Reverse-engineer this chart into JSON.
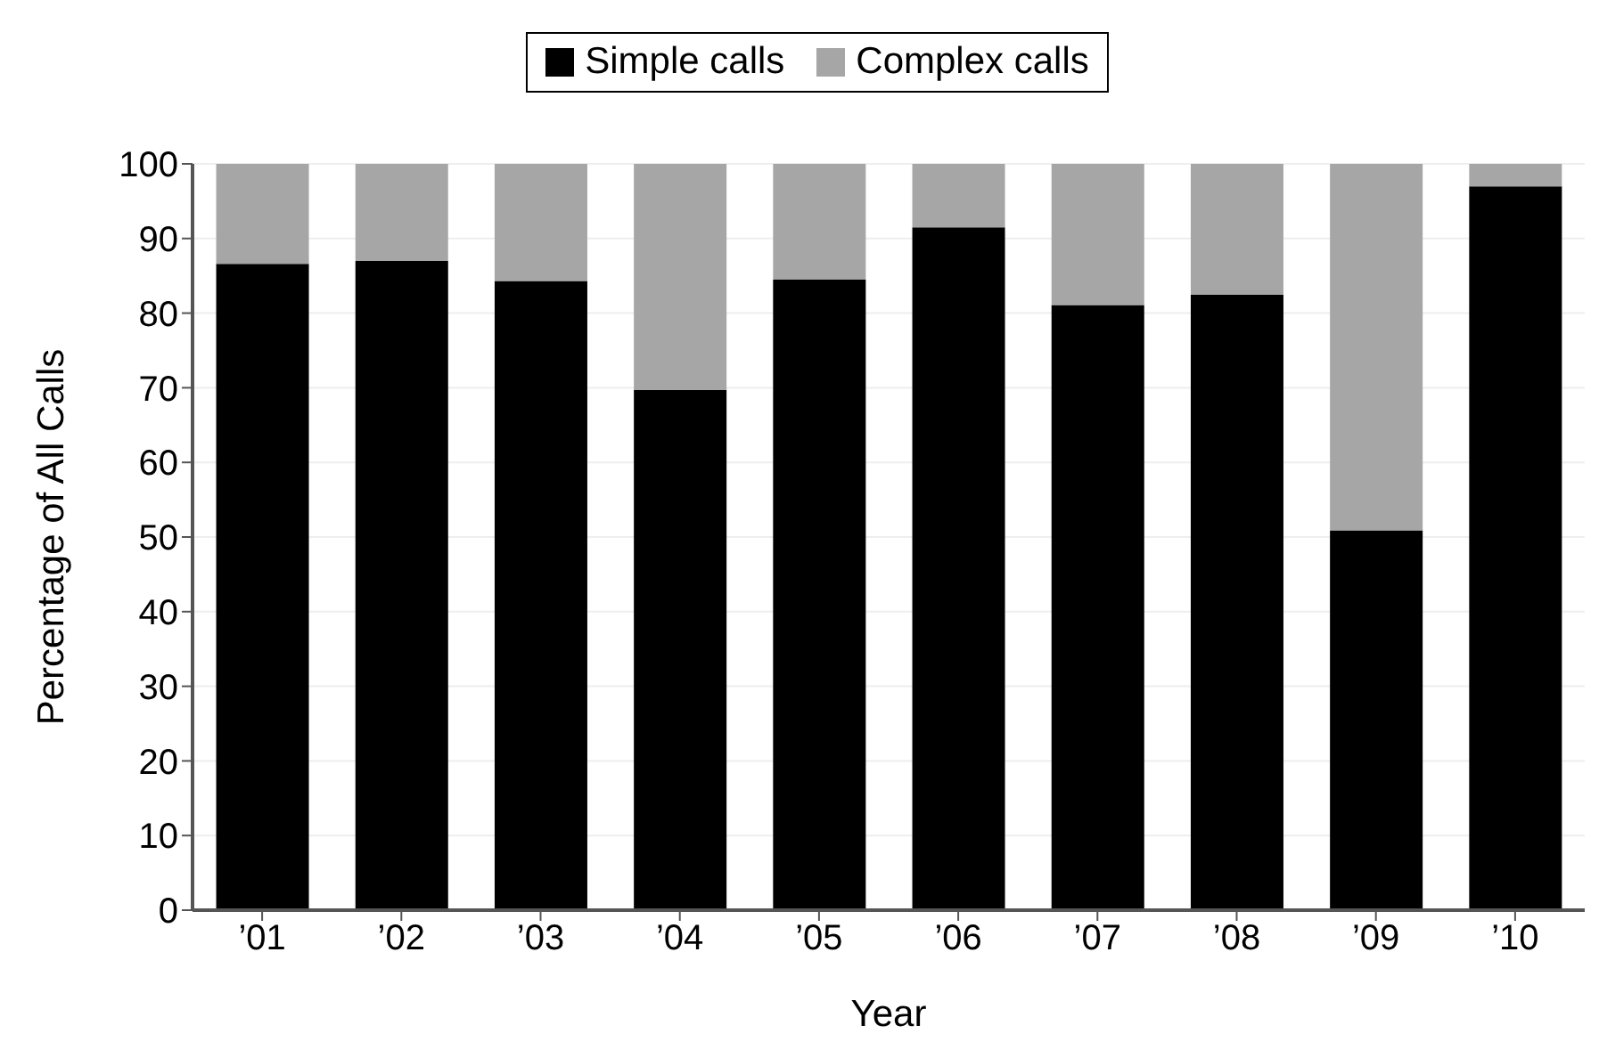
{
  "chart_data": {
    "type": "bar",
    "stacked": true,
    "xlabel": "Year",
    "ylabel": "Percentage of All Calls",
    "categories": [
      "’01",
      "’02",
      "’03",
      "’04",
      "’05",
      "’06",
      "’07",
      "’08",
      "’09",
      "’10"
    ],
    "series": [
      {
        "name": "Simple calls",
        "color": "#000000",
        "values": [
          86.6,
          87.0,
          84.3,
          69.7,
          84.5,
          91.5,
          81.1,
          82.5,
          50.9,
          97.0
        ]
      },
      {
        "name": "Complex calls",
        "color": "#a6a6a6",
        "values": [
          13.4,
          13.0,
          15.7,
          30.3,
          15.5,
          8.5,
          18.9,
          17.5,
          49.1,
          3.0
        ]
      }
    ],
    "ylim": [
      0,
      100
    ],
    "yticks": [
      0,
      10,
      20,
      30,
      40,
      50,
      60,
      70,
      80,
      90,
      100
    ],
    "grid": "y",
    "legend": "top"
  }
}
